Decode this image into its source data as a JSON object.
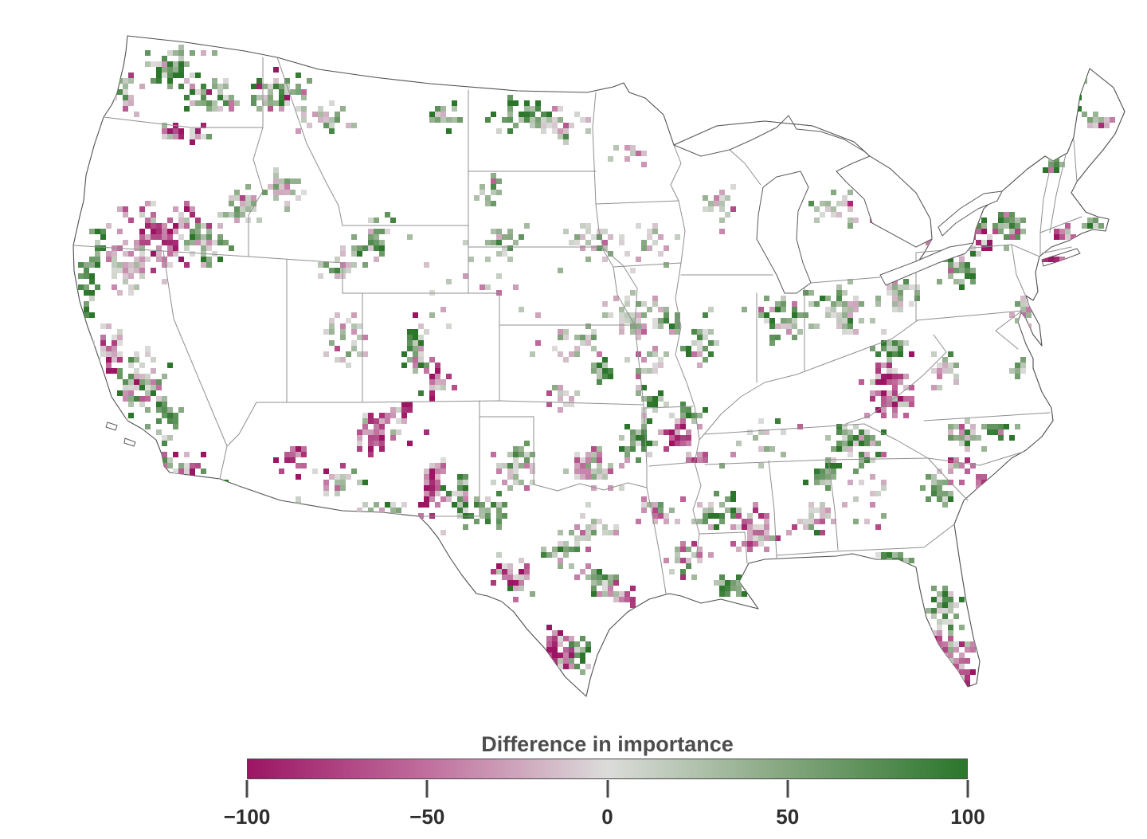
{
  "legend": {
    "title": "Difference in importance",
    "ticks": [
      "−100",
      "−50",
      "0",
      "50",
      "100"
    ],
    "tick_values": [
      -100,
      -50,
      0,
      50,
      100
    ]
  },
  "colors": {
    "scale_stops": [
      "#9c1563",
      "#c06f9e",
      "#dcdcda",
      "#84a67e",
      "#2b762b"
    ],
    "background": "#ffffff",
    "coast_line": "#4f4f4f",
    "state_line": "#8f8f8f",
    "title_text": "#4d4d4d",
    "tick_text": "#2e2e2e"
  },
  "chart_data": {
    "type": "heatmap",
    "title": "Difference in importance",
    "region": "contiguous United States",
    "colorbar_ticks": [
      -100,
      -50,
      0,
      50,
      100
    ],
    "value_range": [
      -100,
      100
    ],
    "cell_size_px": 7,
    "seed": 20240613,
    "clusters": [
      [
        215,
        80,
        32,
        20,
        55,
        55,
        45
      ],
      [
        162,
        112,
        14,
        22,
        18,
        5,
        30
      ],
      [
        258,
        120,
        30,
        20,
        38,
        25,
        50
      ],
      [
        345,
        112,
        36,
        24,
        60,
        30,
        48
      ],
      [
        395,
        148,
        28,
        18,
        28,
        0,
        25
      ],
      [
        235,
        163,
        33,
        13,
        28,
        -35,
        50
      ],
      [
        205,
        292,
        46,
        36,
        105,
        -50,
        42
      ],
      [
        158,
        335,
        28,
        28,
        55,
        -8,
        35
      ],
      [
        252,
        302,
        25,
        21,
        38,
        45,
        45
      ],
      [
        300,
        255,
        26,
        22,
        32,
        18,
        40
      ],
      [
        358,
        232,
        22,
        17,
        22,
        8,
        30
      ],
      [
        106,
        355,
        9,
        42,
        34,
        85,
        25
      ],
      [
        122,
        300,
        10,
        22,
        18,
        70,
        35
      ],
      [
        133,
        435,
        18,
        28,
        38,
        -40,
        45
      ],
      [
        172,
        478,
        28,
        33,
        75,
        25,
        55
      ],
      [
        148,
        543,
        23,
        28,
        60,
        -55,
        40
      ],
      [
        203,
        518,
        16,
        20,
        28,
        65,
        35
      ],
      [
        222,
        588,
        26,
        23,
        50,
        -20,
        60
      ],
      [
        268,
        612,
        20,
        14,
        26,
        35,
        50
      ],
      [
        368,
        575,
        16,
        16,
        20,
        -65,
        35
      ],
      [
        430,
        420,
        33,
        28,
        36,
        8,
        30
      ],
      [
        468,
        300,
        28,
        23,
        28,
        40,
        40
      ],
      [
        428,
        332,
        23,
        18,
        22,
        15,
        35
      ],
      [
        520,
        432,
        13,
        38,
        42,
        55,
        45
      ],
      [
        542,
        470,
        15,
        23,
        28,
        -45,
        45
      ],
      [
        472,
        540,
        28,
        23,
        42,
        -50,
        40
      ],
      [
        500,
        512,
        16,
        11,
        18,
        -50,
        40
      ],
      [
        540,
        605,
        13,
        33,
        60,
        -60,
        40
      ],
      [
        575,
        618,
        18,
        23,
        36,
        50,
        45
      ],
      [
        612,
        642,
        23,
        18,
        32,
        55,
        40
      ],
      [
        648,
        588,
        24,
        19,
        32,
        0,
        30
      ],
      [
        655,
        562,
        14,
        11,
        14,
        45,
        40
      ],
      [
        478,
        640,
        23,
        14,
        22,
        30,
        45
      ],
      [
        420,
        600,
        23,
        18,
        26,
        20,
        40
      ],
      [
        358,
        640,
        16,
        13,
        16,
        -30,
        45
      ],
      [
        558,
        140,
        23,
        16,
        18,
        40,
        40
      ],
      [
        652,
        140,
        28,
        20,
        45,
        50,
        48
      ],
      [
        698,
        155,
        28,
        18,
        40,
        5,
        25
      ],
      [
        612,
        243,
        18,
        16,
        18,
        30,
        40
      ],
      [
        626,
        300,
        20,
        16,
        20,
        35,
        40
      ],
      [
        738,
        298,
        28,
        23,
        35,
        5,
        30
      ],
      [
        788,
        186,
        22,
        16,
        13,
        0,
        25
      ],
      [
        790,
        395,
        42,
        24,
        48,
        0,
        26
      ],
      [
        838,
        400,
        14,
        9,
        16,
        55,
        40
      ],
      [
        718,
        428,
        30,
        20,
        28,
        6,
        30
      ],
      [
        756,
        460,
        16,
        13,
        22,
        70,
        35
      ],
      [
        700,
        492,
        23,
        16,
        18,
        0,
        30
      ],
      [
        740,
        585,
        32,
        22,
        45,
        -5,
        30
      ],
      [
        800,
        545,
        18,
        22,
        36,
        55,
        45
      ],
      [
        845,
        545,
        16,
        20,
        32,
        -55,
        45
      ],
      [
        862,
        520,
        11,
        9,
        13,
        65,
        35
      ],
      [
        876,
        572,
        11,
        9,
        13,
        -55,
        40
      ],
      [
        735,
        660,
        28,
        20,
        30,
        -5,
        30
      ],
      [
        700,
        690,
        18,
        14,
        22,
        40,
        40
      ],
      [
        640,
        718,
        26,
        20,
        36,
        -30,
        50
      ],
      [
        755,
        725,
        23,
        18,
        32,
        25,
        45
      ],
      [
        790,
        745,
        13,
        11,
        13,
        -50,
        40
      ],
      [
        700,
        818,
        20,
        28,
        50,
        -65,
        38
      ],
      [
        726,
        816,
        13,
        18,
        26,
        60,
        40
      ],
      [
        806,
        452,
        28,
        23,
        18,
        0,
        28
      ],
      [
        818,
        498,
        22,
        14,
        18,
        45,
        40
      ],
      [
        798,
        300,
        32,
        23,
        22,
        0,
        25
      ],
      [
        876,
        430,
        23,
        28,
        28,
        50,
        40
      ],
      [
        900,
        252,
        26,
        20,
        18,
        0,
        25
      ],
      [
        1048,
        265,
        28,
        23,
        22,
        10,
        30
      ],
      [
        1095,
        225,
        10,
        8,
        10,
        55,
        40
      ],
      [
        978,
        398,
        28,
        23,
        45,
        35,
        45
      ],
      [
        1052,
        385,
        32,
        26,
        55,
        25,
        40
      ],
      [
        1108,
        478,
        23,
        32,
        65,
        -60,
        40
      ],
      [
        1128,
        500,
        16,
        16,
        20,
        -50,
        40
      ],
      [
        1072,
        555,
        32,
        27,
        72,
        35,
        55
      ],
      [
        1118,
        432,
        18,
        13,
        22,
        50,
        45
      ],
      [
        1032,
        594,
        18,
        16,
        26,
        65,
        35
      ],
      [
        948,
        662,
        26,
        26,
        52,
        -35,
        35
      ],
      [
        1022,
        648,
        23,
        20,
        26,
        0,
        30
      ],
      [
        898,
        640,
        23,
        18,
        30,
        55,
        45
      ],
      [
        908,
        735,
        18,
        13,
        22,
        70,
        35
      ],
      [
        860,
        698,
        23,
        23,
        26,
        0,
        35
      ],
      [
        826,
        640,
        20,
        18,
        24,
        -20,
        40
      ],
      [
        1205,
        300,
        33,
        18,
        62,
        -55,
        40
      ],
      [
        1258,
        278,
        23,
        18,
        40,
        60,
        40
      ],
      [
        1198,
        333,
        20,
        16,
        36,
        60,
        45
      ],
      [
        1128,
        368,
        28,
        18,
        30,
        20,
        35
      ],
      [
        1248,
        207,
        18,
        13,
        18,
        10,
        30
      ],
      [
        1345,
        105,
        20,
        16,
        35,
        70,
        40
      ],
      [
        1372,
        148,
        16,
        13,
        16,
        5,
        30
      ],
      [
        1318,
        205,
        10,
        16,
        16,
        55,
        40
      ],
      [
        1332,
        290,
        16,
        9,
        22,
        -50,
        45
      ],
      [
        1370,
        278,
        10,
        7,
        13,
        60,
        40
      ],
      [
        1326,
        325,
        16,
        5,
        16,
        -75,
        30
      ],
      [
        1280,
        392,
        13,
        18,
        22,
        -10,
        40
      ],
      [
        1275,
        460,
        10,
        13,
        18,
        60,
        40
      ],
      [
        1182,
        463,
        23,
        18,
        26,
        0,
        30
      ],
      [
        1212,
        543,
        28,
        20,
        36,
        10,
        45
      ],
      [
        1253,
        535,
        13,
        10,
        16,
        55,
        40
      ],
      [
        1178,
        613,
        23,
        18,
        30,
        40,
        45
      ],
      [
        1196,
        585,
        16,
        13,
        18,
        -30,
        40
      ],
      [
        1228,
        600,
        10,
        9,
        9,
        -40,
        40
      ],
      [
        1120,
        698,
        18,
        7,
        18,
        70,
        40
      ],
      [
        1183,
        758,
        20,
        23,
        40,
        50,
        45
      ],
      [
        1192,
        812,
        20,
        23,
        45,
        -10,
        40
      ],
      [
        1203,
        838,
        13,
        10,
        18,
        -65,
        35
      ],
      [
        1172,
        800,
        10,
        9,
        12,
        -45,
        40
      ],
      [
        600,
        350,
        80,
        55,
        22,
        0,
        22
      ],
      [
        940,
        545,
        55,
        35,
        16,
        5,
        30
      ],
      [
        1080,
        620,
        40,
        30,
        14,
        0,
        30
      ]
    ]
  }
}
